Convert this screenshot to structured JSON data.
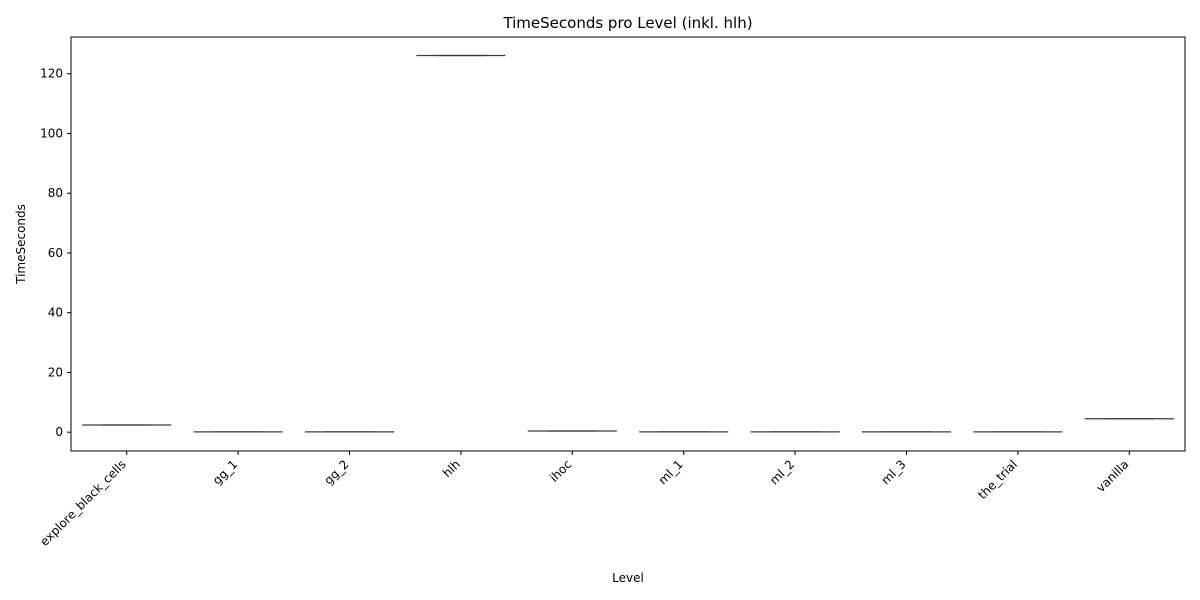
{
  "chart_data": {
    "type": "box",
    "title": "TimeSeconds pro Level (inkl. hlh)",
    "xlabel": "Level",
    "ylabel": "TimeSeconds",
    "ylim": [
      -6.3,
      132.3
    ],
    "yticks": [
      0,
      20,
      40,
      60,
      80,
      100,
      120
    ],
    "grid": false,
    "legend": "none",
    "box_color": "#4c72b0",
    "line_color": "#3d3d3d",
    "categories": [
      "explore_black_cells",
      "gg_1",
      "gg_2",
      "hlh",
      "ihoc",
      "ml_1",
      "ml_2",
      "ml_3",
      "the_trial",
      "vanilla"
    ],
    "values": [
      2.4,
      0.1,
      0.1,
      126.1,
      0.4,
      0.1,
      0.1,
      0.1,
      0.1,
      4.5
    ]
  }
}
